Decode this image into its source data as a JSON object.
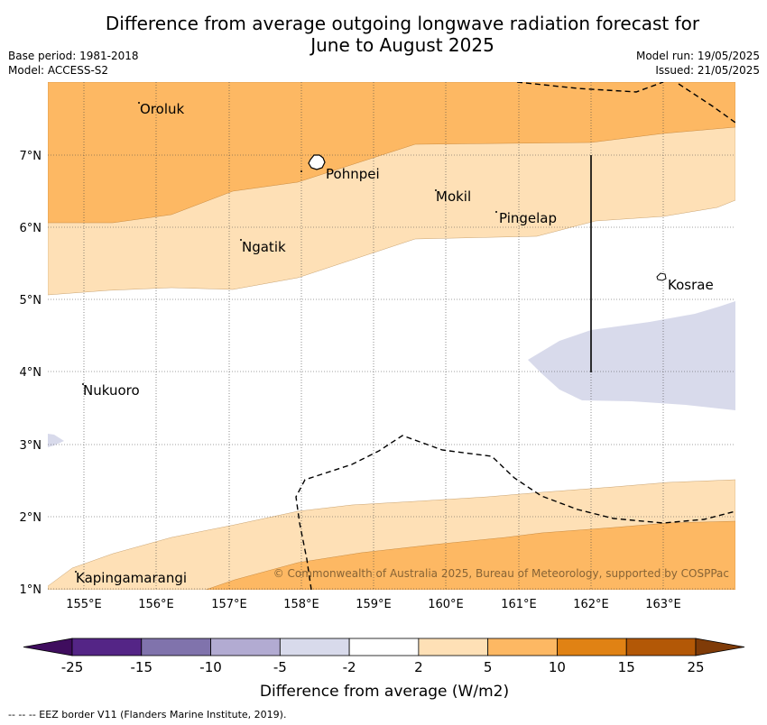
{
  "title_line1": "Difference from average outgoing longwave radiation forecast for",
  "title_line2": "June to August 2025",
  "base_period": "Base period: 1981-2018",
  "model": "Model: ACCESS-S2",
  "model_run": "Model run: 19/05/2025",
  "issued": "Issued: 21/05/2025",
  "copyright": "© Commonwealth of Australia 2025, Bureau of Meteorology, supported by COSPPac",
  "footnote": "--  --  -- EEZ border V11 (Flanders Marine Institute, 2019).",
  "colorbar_title": "Difference from average (W/m2)",
  "colorbar_ticks": [
    "-25",
    "-15",
    "-10",
    "-5",
    "-2",
    "2",
    "5",
    "10",
    "15",
    "25"
  ],
  "colorbar_colors": [
    "#3f0d5e",
    "#542586",
    "#8073ac",
    "#b2abd2",
    "#d8daeb",
    "#ffffff",
    "#fee0b6",
    "#fdb863",
    "#e08214",
    "#b35806",
    "#7f3b08"
  ],
  "lon_labels": [
    "155°E",
    "156°E",
    "157°E",
    "158°E",
    "159°E",
    "160°E",
    "161°E",
    "162°E",
    "163°E"
  ],
  "lat_labels": [
    "1°N",
    "2°N",
    "3°N",
    "4°N",
    "5°N",
    "6°N",
    "7°N"
  ],
  "places": [
    {
      "name": "Oroluk"
    },
    {
      "name": "Pohnpei"
    },
    {
      "name": "Mokil"
    },
    {
      "name": "Pingelap"
    },
    {
      "name": "Ngatik"
    },
    {
      "name": "Kosrae"
    },
    {
      "name": "Nukuoro"
    },
    {
      "name": "Kapingamarangi"
    }
  ]
}
